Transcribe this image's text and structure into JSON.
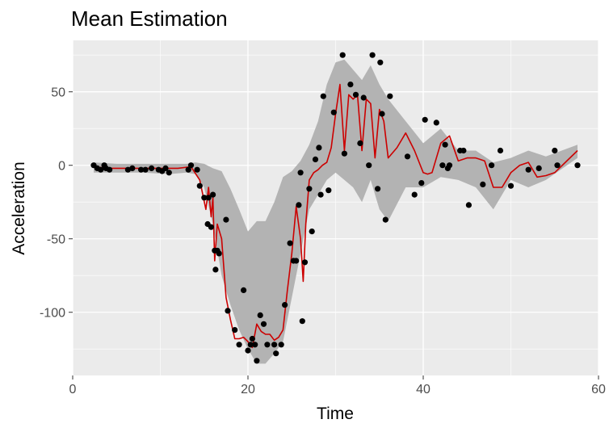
{
  "chart_data": {
    "type": "line",
    "title": "Mean Estimation",
    "xlabel": "Time",
    "ylabel": "Acceleration",
    "xlim": [
      0,
      60
    ],
    "ylim": [
      -143,
      85
    ],
    "x_ticks": [
      0,
      20,
      40,
      60
    ],
    "y_ticks": [
      -100,
      -50,
      0,
      50
    ],
    "grid": true,
    "legend": "none",
    "colors": {
      "panel_background": "#EBEBEB",
      "grid_line": "#FFFFFF",
      "ribbon": "#B3B3B3",
      "mean_line": "#CC0000",
      "points": "#000000"
    },
    "series": [
      {
        "type": "ribbon",
        "x": [
          2.4,
          5,
          8,
          11,
          13,
          14,
          15,
          16,
          17,
          18,
          19,
          20,
          21,
          22,
          23,
          24,
          25,
          26,
          27,
          28,
          29,
          30,
          31,
          32,
          33,
          34,
          35,
          36,
          38,
          40,
          42,
          44,
          46,
          48,
          50,
          52,
          54,
          57.6
        ],
        "upper": [
          2,
          1,
          1,
          1,
          1,
          2,
          1,
          -2,
          -4,
          -16,
          -30,
          -45,
          -38,
          -38,
          -25,
          -8,
          -4,
          3,
          14,
          30,
          55,
          70,
          72,
          65,
          58,
          68,
          55,
          45,
          30,
          15,
          25,
          10,
          10,
          2,
          5,
          10,
          6,
          14
        ],
        "lower": [
          -5,
          -5,
          -5,
          -6,
          -5,
          -6,
          -15,
          -40,
          -75,
          -95,
          -112,
          -125,
          -135,
          -135,
          -128,
          -120,
          -90,
          -60,
          -30,
          -20,
          -10,
          -5,
          -10,
          -15,
          -25,
          -10,
          -30,
          -38,
          -15,
          -15,
          -8,
          -10,
          -15,
          -30,
          -10,
          -15,
          -10,
          5
        ]
      },
      {
        "type": "line",
        "name": "",
        "x": [
          2.4,
          4,
          6,
          8,
          10,
          12,
          13.5,
          14.5,
          15.2,
          15.5,
          15.8,
          16.0,
          16.2,
          16.5,
          17.0,
          17.5,
          18.0,
          18.5,
          19.0,
          19.5,
          20.0,
          20.5,
          21.0,
          21.5,
          22.0,
          22.5,
          23.0,
          23.5,
          24.0,
          24.5,
          25.0,
          25.5,
          26.0,
          26.3,
          26.6,
          27.0,
          27.5,
          28.0,
          28.5,
          29.0,
          29.5,
          30.0,
          30.5,
          31.0,
          31.5,
          32.0,
          32.5,
          33.0,
          33.5,
          34.0,
          34.5,
          35.0,
          35.5,
          36.0,
          37.0,
          38.0,
          39.0,
          40.0,
          40.5,
          41.0,
          42.0,
          43.0,
          44.0,
          45.0,
          46.0,
          47.0,
          48.0,
          49.0,
          50.0,
          51.0,
          52.0,
          53.0,
          54.0,
          55.0,
          57.6
        ],
        "y": [
          -1,
          -2,
          -2,
          -2,
          -2,
          -2,
          -1,
          -10,
          -30,
          -15,
          -35,
          -22,
          -65,
          -40,
          -50,
          -90,
          -105,
          -118,
          -118,
          -117,
          -120,
          -124,
          -108,
          -113,
          -115,
          -115,
          -119,
          -117,
          -112,
          -85,
          -60,
          -28,
          -50,
          -79,
          -40,
          -10,
          -5,
          -3,
          0,
          2,
          12,
          35,
          55,
          10,
          48,
          45,
          48,
          10,
          45,
          42,
          5,
          38,
          30,
          5,
          12,
          22,
          10,
          -5,
          -6,
          -5,
          15,
          20,
          3,
          5,
          5,
          3,
          -15,
          -15,
          -5,
          0,
          2,
          -8,
          -7,
          -5,
          10
        ]
      },
      {
        "type": "scatter",
        "name": "",
        "x": [
          2.4,
          2.8,
          3.2,
          3.6,
          3.8,
          4.2,
          6.3,
          6.8,
          7.8,
          8.3,
          9.0,
          9.8,
          10.2,
          10.6,
          11.0,
          13.2,
          13.5,
          14.2,
          14.5,
          15.0,
          15.4,
          15.5,
          15.8,
          16.0,
          16.2,
          16.3,
          16.5,
          16.7,
          17.5,
          17.7,
          18.5,
          19.0,
          19.5,
          20.0,
          20.3,
          20.5,
          20.8,
          21.0,
          21.4,
          21.8,
          22.2,
          23.0,
          23.2,
          23.8,
          24.2,
          24.8,
          25.2,
          25.5,
          25.8,
          26.0,
          26.2,
          26.5,
          27.0,
          27.3,
          27.7,
          28.1,
          28.3,
          28.6,
          29.2,
          29.8,
          30.8,
          31.0,
          31.7,
          32.3,
          32.8,
          33.2,
          33.8,
          34.2,
          34.8,
          35.1,
          35.3,
          35.7,
          36.2,
          38.2,
          39.0,
          39.8,
          40.2,
          41.5,
          42.2,
          42.5,
          42.8,
          43.0,
          44.2,
          44.6,
          45.2,
          46.8,
          47.8,
          48.8,
          50.0,
          52.0,
          53.2,
          55.0,
          55.3,
          57.6
        ],
        "y": [
          0,
          -2,
          -3,
          0,
          -2,
          -3,
          -3,
          -2,
          -3,
          -3,
          -2,
          -3,
          -4,
          -2,
          -5,
          -3,
          0,
          -3,
          -14,
          -22,
          -40,
          -22,
          -42,
          -20,
          -58,
          -71,
          -58,
          -60,
          -37,
          -99,
          -112,
          -122,
          -85,
          -126,
          -122,
          -118,
          -122,
          -133,
          -102,
          -108,
          -122,
          -122,
          -128,
          -122,
          -95,
          -53,
          -65,
          -65,
          -27,
          -5,
          -106,
          -66,
          -16,
          -45,
          4,
          12,
          -20,
          47,
          -17,
          36,
          75,
          8,
          55,
          48,
          15,
          46,
          0,
          75,
          -16,
          70,
          35,
          -37,
          47,
          6,
          -20,
          -12,
          31,
          29,
          0,
          14,
          -2,
          0,
          10,
          10,
          -27,
          -13,
          0,
          10,
          -14,
          -3,
          -2,
          10,
          0,
          0
        ]
      }
    ]
  }
}
